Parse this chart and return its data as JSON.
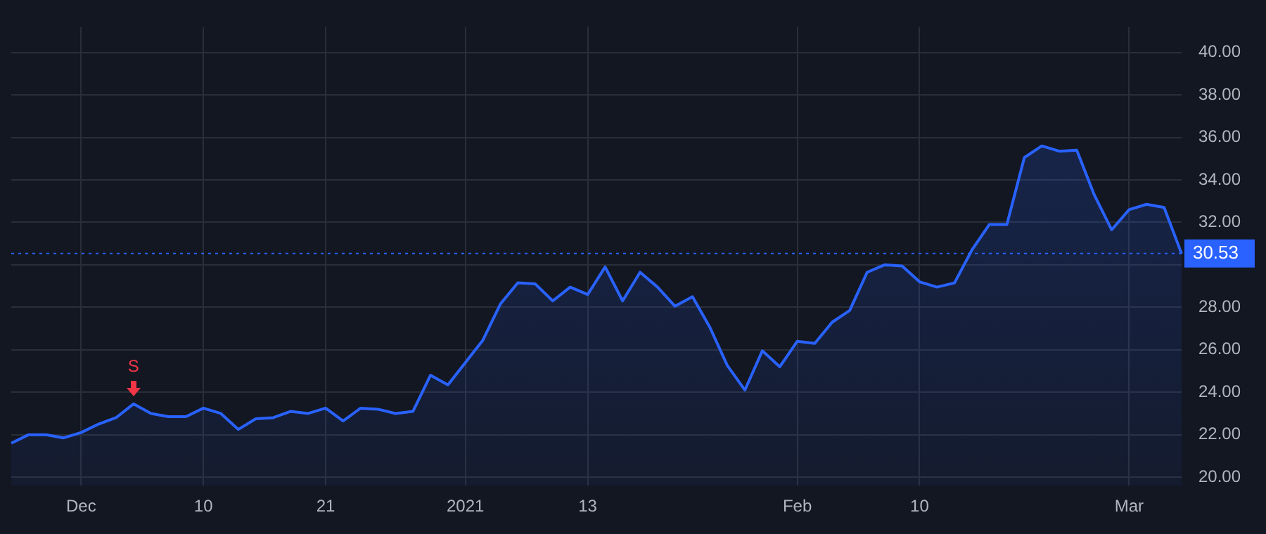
{
  "chart_data": {
    "type": "area",
    "categories": [
      null,
      null,
      null,
      null,
      "Dec",
      null,
      null,
      null,
      null,
      null,
      null,
      "10",
      null,
      null,
      null,
      null,
      null,
      null,
      "21",
      null,
      null,
      null,
      null,
      null,
      null,
      null,
      "2021",
      null,
      null,
      null,
      null,
      null,
      null,
      "13",
      null,
      null,
      null,
      null,
      null,
      null,
      null,
      null,
      null,
      null,
      null,
      "Feb",
      null,
      null,
      null,
      null,
      null,
      null,
      "10",
      null,
      null,
      null,
      null,
      null,
      null,
      null,
      null,
      null,
      null,
      null,
      "Mar",
      null,
      null,
      null
    ],
    "series": [
      {
        "color": "#2962ff",
        "values": [
          21.6,
          22.0,
          22.0,
          21.85,
          22.1,
          22.5,
          22.8,
          23.45,
          23.0,
          22.85,
          22.85,
          23.25,
          23.0,
          22.25,
          22.75,
          22.8,
          23.1,
          23.0,
          23.25,
          22.65,
          23.25,
          23.2,
          23.0,
          23.1,
          24.8,
          24.35,
          25.4,
          26.45,
          28.15,
          29.15,
          29.1,
          28.3,
          28.95,
          28.6,
          29.9,
          28.3,
          29.65,
          28.95,
          28.05,
          28.5,
          27.05,
          25.25,
          24.1,
          25.95,
          25.2,
          26.4,
          26.3,
          27.3,
          27.85,
          29.65,
          30.0,
          29.95,
          29.2,
          28.95,
          29.15,
          30.7,
          31.9,
          31.9,
          35.05,
          35.6,
          35.35,
          35.4,
          33.3,
          31.65,
          32.6,
          32.85,
          32.7,
          30.53
        ]
      }
    ],
    "ylim": [
      19.6,
      41.2
    ],
    "yticks": [
      {
        "value": 20,
        "label": "20.00"
      },
      {
        "value": 22,
        "label": "22.00"
      },
      {
        "value": 24,
        "label": "24.00"
      },
      {
        "value": 26,
        "label": "26.00"
      },
      {
        "value": 28,
        "label": "28.00"
      },
      {
        "value": 30,
        "label": null
      },
      {
        "value": 32,
        "label": "32.00"
      },
      {
        "value": 34,
        "label": "34.00"
      },
      {
        "value": 36,
        "label": "36.00"
      },
      {
        "value": 38,
        "label": "38.00"
      },
      {
        "value": 40,
        "label": "40.00"
      }
    ],
    "ref_lines": [
      {
        "axis": "y",
        "value": 30.53,
        "label": "30.53",
        "color": "#2962ff",
        "line_style": "dotted"
      }
    ],
    "annotations": [
      {
        "text": "S",
        "y": 23.45
      }
    ],
    "grid": true,
    "legend": false,
    "marker": "none",
    "line_style": "solid"
  }
}
